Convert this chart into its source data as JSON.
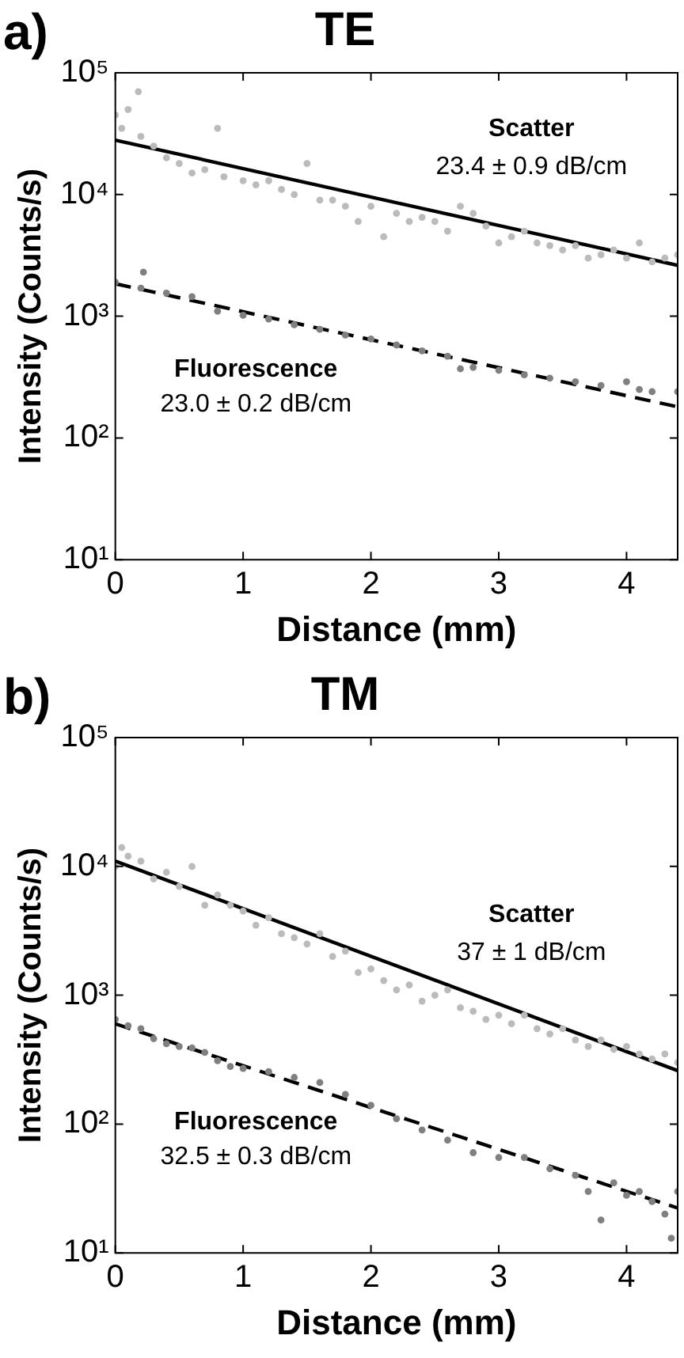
{
  "chart_data": [
    {
      "type": "scatter",
      "title": "TE",
      "xlabel": "Distance (mm)",
      "ylabel": "Intensity (Counts/s)",
      "log": "y",
      "marker": "circle",
      "legend": false,
      "xlim": [
        0,
        4.4
      ],
      "xticks": [
        0,
        1,
        2,
        3,
        4
      ],
      "ylim": [
        10,
        100000
      ],
      "yticks": [
        {
          "value": 10,
          "label": "10¹"
        },
        {
          "value": 100,
          "label": "10²"
        },
        {
          "value": 1000,
          "label": "10³"
        },
        {
          "value": 10000,
          "label": "10⁴"
        },
        {
          "value": 100000,
          "label": "10⁵"
        }
      ],
      "annotations": [
        "a)",
        "23.4 ± 0.9 dB/cm",
        "23.0 ± 0.2 dB/cm"
      ],
      "series": [
        {
          "type": "scatter",
          "name": "Scatter",
          "color": "#bbbbbb",
          "x": [
            0,
            0.05,
            0.1,
            0.18,
            0.2,
            0.3,
            0.4,
            0.5,
            0.6,
            0.7,
            0.8,
            0.85,
            1.0,
            1.1,
            1.2,
            1.3,
            1.4,
            1.5,
            1.6,
            1.7,
            1.8,
            1.9,
            2.0,
            2.1,
            2.2,
            2.3,
            2.4,
            2.5,
            2.6,
            2.7,
            2.8,
            2.9,
            3.0,
            3.1,
            3.2,
            3.3,
            3.4,
            3.5,
            3.6,
            3.7,
            3.8,
            3.9,
            4.0,
            4.1,
            4.2,
            4.3,
            4.4
          ],
          "values": [
            45000,
            35000,
            50000,
            70000,
            30000,
            25000,
            20000,
            18000,
            15000,
            16000,
            35000,
            14000,
            13000,
            12000,
            13000,
            11000,
            10000,
            18000,
            9000,
            9000,
            8000,
            6000,
            8000,
            4500,
            7000,
            6000,
            6500,
            6000,
            5000,
            8000,
            7000,
            5500,
            4000,
            4500,
            5000,
            4000,
            3800,
            3500,
            3800,
            3000,
            3200,
            3500,
            3000,
            4000,
            2800,
            3000,
            3200
          ]
        },
        {
          "type": "scatter",
          "name": "Fluorescence",
          "color": "#808080",
          "x": [
            0,
            0.2,
            0.22,
            0.4,
            0.6,
            0.8,
            1.0,
            1.2,
            1.4,
            1.6,
            1.8,
            2.0,
            2.2,
            2.4,
            2.6,
            2.7,
            2.8,
            3.0,
            3.2,
            3.4,
            3.6,
            3.8,
            4.0,
            4.1,
            4.2,
            4.4
          ],
          "values": [
            1900,
            1700,
            2300,
            1550,
            1450,
            1100,
            1020,
            950,
            850,
            780,
            700,
            650,
            580,
            520,
            470,
            370,
            380,
            360,
            330,
            310,
            290,
            270,
            290,
            250,
            240,
            240
          ]
        },
        {
          "type": "line",
          "color": "#000000",
          "line_style": "solid",
          "marker": "none",
          "x": [
            0,
            4.4
          ],
          "values": [
            28000,
            2620
          ]
        },
        {
          "type": "line",
          "color": "#000000",
          "line_style": "dashed",
          "marker": "none",
          "x": [
            0,
            4.4
          ],
          "values": [
            1850,
            180
          ]
        }
      ]
    },
    {
      "type": "scatter",
      "title": "TM",
      "xlabel": "Distance (mm)",
      "ylabel": "Intensity (Counts/s)",
      "log": "y",
      "marker": "circle",
      "legend": false,
      "xlim": [
        0,
        4.4
      ],
      "xticks": [
        0,
        1,
        2,
        3,
        4
      ],
      "ylim": [
        10,
        100000
      ],
      "yticks": [
        {
          "value": 10,
          "label": "10¹"
        },
        {
          "value": 100,
          "label": "10²"
        },
        {
          "value": 1000,
          "label": "10³"
        },
        {
          "value": 10000,
          "label": "10⁴"
        },
        {
          "value": 100000,
          "label": "10⁵"
        }
      ],
      "annotations": [
        "b)",
        "37 ± 1 dB/cm",
        "32.5 ± 0.3 dB/cm"
      ],
      "series": [
        {
          "type": "scatter",
          "name": "Scatter",
          "color": "#bbbbbb",
          "x": [
            0,
            0.05,
            0.1,
            0.2,
            0.3,
            0.4,
            0.5,
            0.6,
            0.7,
            0.8,
            0.9,
            1.0,
            1.1,
            1.2,
            1.3,
            1.4,
            1.5,
            1.6,
            1.7,
            1.8,
            1.9,
            2.0,
            2.1,
            2.2,
            2.3,
            2.4,
            2.5,
            2.6,
            2.7,
            2.8,
            2.9,
            3.0,
            3.1,
            3.2,
            3.3,
            3.4,
            3.5,
            3.6,
            3.7,
            3.8,
            3.9,
            4.0,
            4.1,
            4.2,
            4.3,
            4.4
          ],
          "values": [
            10000,
            14000,
            12000,
            11000,
            8000,
            9000,
            7000,
            10000,
            5000,
            6000,
            5000,
            4500,
            3500,
            4000,
            3000,
            2800,
            2500,
            3000,
            2000,
            2200,
            1500,
            1600,
            1300,
            1100,
            1200,
            900,
            1000,
            1100,
            800,
            750,
            650,
            700,
            600,
            700,
            550,
            500,
            550,
            450,
            400,
            450,
            380,
            400,
            350,
            320,
            350,
            300
          ]
        },
        {
          "type": "scatter",
          "name": "Fluorescence",
          "color": "#808080",
          "x": [
            0,
            0.1,
            0.2,
            0.3,
            0.4,
            0.5,
            0.6,
            0.7,
            0.8,
            0.9,
            1.0,
            1.2,
            1.4,
            1.6,
            1.8,
            2.0,
            2.2,
            2.4,
            2.6,
            2.8,
            3.0,
            3.2,
            3.4,
            3.6,
            3.7,
            3.8,
            3.9,
            4.0,
            4.1,
            4.2,
            4.3,
            4.35,
            4.4
          ],
          "values": [
            650,
            580,
            550,
            460,
            420,
            400,
            390,
            360,
            310,
            280,
            270,
            255,
            230,
            210,
            170,
            140,
            110,
            90,
            75,
            60,
            55,
            55,
            45,
            40,
            30,
            18,
            35,
            28,
            30,
            25,
            20,
            13,
            30
          ]
        },
        {
          "type": "line",
          "color": "#000000",
          "line_style": "solid",
          "marker": "none",
          "x": [
            0,
            4.4
          ],
          "values": [
            11000,
            260
          ]
        },
        {
          "type": "line",
          "color": "#000000",
          "line_style": "dashed",
          "marker": "none",
          "x": [
            0,
            4.4
          ],
          "values": [
            600,
            22.3
          ]
        }
      ]
    }
  ]
}
